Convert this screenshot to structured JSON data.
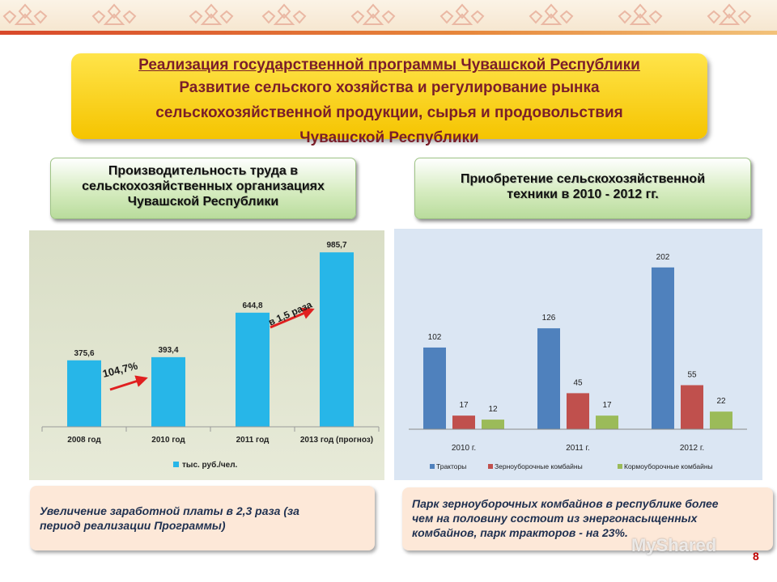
{
  "title": {
    "line1": "Реализация государственной программы Чувашской Республики",
    "line2": "Развитие сельского хозяйства и регулирование рынка",
    "line3": "сельскохозяйственной продукции, сырья и продовольствия",
    "line4": "Чувашской Республики"
  },
  "left_header": {
    "line1": "Производительность труда в",
    "line2": "сельскохозяйственных организациях",
    "line3": "Чувашской Республики"
  },
  "right_header": {
    "line1": "Приобретение сельскохозяйственной",
    "line2": "техники в 2010 - 2012 гг."
  },
  "left_note": {
    "line1": "Увеличение заработной платы в 2,3 раза (за",
    "line2": "период реализации Программы)"
  },
  "right_note": {
    "line1": "Парк зерноуборочных комбайнов в республике более",
    "line2": "чем на половину состоит из энергонасыщенных",
    "line3": "комбайнов, парк тракторов - на 23%."
  },
  "watermark": "MyShared",
  "page_number": "8",
  "colors": {
    "accent_red": "#7a1e2a",
    "bar_blue_light": "#27b6e8",
    "tractor_blue": "#4f81bd",
    "combine_red": "#c0504d",
    "forage_green": "#9bbb59"
  },
  "chart_data": [
    {
      "type": "bar",
      "categories": [
        "2008 год",
        "2010 год",
        "2011 год",
        "2013 год (прогноз)"
      ],
      "series": [
        {
          "name": "тыс. руб./чел.",
          "values": [
            375.6,
            393.4,
            644.8,
            985.7
          ]
        }
      ],
      "data_labels": [
        "375,6",
        "393,4",
        "644,8",
        "985,7"
      ],
      "annotations": [
        "104,7%",
        "в 1,5 раза"
      ],
      "legend_position": "bottom",
      "ylim": [
        0,
        1100
      ],
      "grid": false
    },
    {
      "type": "bar",
      "categories": [
        "2010  г.",
        "2011  г.",
        "2012  г."
      ],
      "series": [
        {
          "name": "Тракторы",
          "values": [
            102,
            126,
            202
          ]
        },
        {
          "name": "Зерноуборочные комбайны",
          "values": [
            17,
            45,
            55
          ]
        },
        {
          "name": "Кормоуборочные комбайны",
          "values": [
            12,
            17,
            22
          ]
        }
      ],
      "legend_position": "bottom",
      "ylim": [
        0,
        220
      ],
      "grid": false
    }
  ]
}
